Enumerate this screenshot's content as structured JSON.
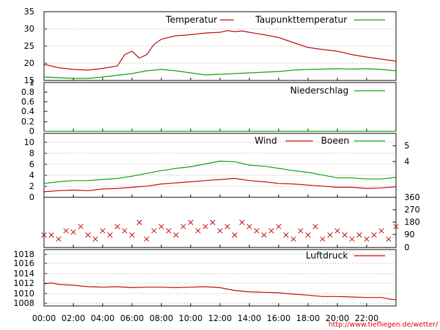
{
  "chart_data": [
    {
      "type": "line",
      "panel": "temperature",
      "ylim": [
        15,
        35
      ],
      "yticks": [
        "35",
        "30",
        "25",
        "20",
        "15"
      ],
      "grid": true,
      "legend_position": "top-right",
      "series": [
        {
          "name": "Temperatur",
          "color": "#c00000",
          "x": [
            0,
            1,
            2,
            3,
            4,
            5,
            5.5,
            6,
            6.5,
            7,
            7.5,
            8,
            8.5,
            9,
            10,
            11,
            12,
            12.5,
            13,
            13.5,
            14,
            15,
            16,
            17,
            18,
            19,
            20,
            21,
            22,
            23,
            24
          ],
          "y": [
            19.7,
            18.7,
            18.2,
            18.0,
            18.5,
            19.2,
            22.5,
            23.5,
            21.5,
            22.5,
            25.5,
            27.0,
            27.5,
            28.0,
            28.3,
            28.8,
            29.0,
            29.5,
            29.2,
            29.4,
            29.0,
            28.3,
            27.5,
            26.0,
            24.6,
            24.0,
            23.5,
            22.5,
            21.8,
            21.2,
            20.6
          ]
        },
        {
          "name": "Taupunkttemperatur",
          "color": "#00a000",
          "x": [
            0,
            1,
            2,
            3,
            4,
            5,
            6,
            7,
            8,
            9,
            10,
            11,
            12,
            13,
            14,
            15,
            16,
            17,
            18,
            19,
            20,
            21,
            22,
            23,
            24
          ],
          "y": [
            16.0,
            15.8,
            15.6,
            15.6,
            16.0,
            16.5,
            17.0,
            17.8,
            18.2,
            17.8,
            17.2,
            16.6,
            16.8,
            17.0,
            17.2,
            17.4,
            17.6,
            18.0,
            18.2,
            18.3,
            18.4,
            18.3,
            18.4,
            18.2,
            17.8
          ]
        }
      ]
    },
    {
      "type": "line",
      "panel": "precipitation",
      "ylim": [
        0,
        1
      ],
      "yticks": [
        "1",
        "0.8",
        "0.6",
        "0.4",
        "0.2",
        "0"
      ],
      "legend_position": "top-right",
      "series": [
        {
          "name": "Niederschlag",
          "color": "#00a000",
          "x": [
            0,
            24
          ],
          "y": [
            0,
            0
          ]
        }
      ]
    },
    {
      "type": "line",
      "panel": "wind",
      "ylim": [
        0,
        11.5
      ],
      "yticks": [
        "10",
        "8",
        "6",
        "4",
        "2",
        "0"
      ],
      "right_ticks": [
        "5",
        "4"
      ],
      "legend_position": "top-right",
      "series": [
        {
          "name": "Wind",
          "color": "#c00000",
          "x": [
            0,
            1,
            2,
            3,
            4,
            5,
            6,
            7,
            8,
            9,
            10,
            11,
            12,
            13,
            14,
            15,
            16,
            17,
            18,
            19,
            20,
            21,
            22,
            23,
            24
          ],
          "y": [
            1.0,
            1.2,
            1.3,
            1.2,
            1.5,
            1.6,
            1.8,
            2.0,
            2.4,
            2.6,
            2.8,
            3.0,
            3.2,
            3.4,
            3.0,
            2.8,
            2.5,
            2.4,
            2.2,
            2.0,
            1.8,
            1.8,
            1.6,
            1.7,
            1.9
          ]
        },
        {
          "name": "Boeen",
          "color": "#00a000",
          "x": [
            0,
            1,
            2,
            3,
            4,
            5,
            6,
            7,
            8,
            9,
            10,
            11,
            12,
            13,
            14,
            15,
            16,
            17,
            18,
            19,
            20,
            21,
            22,
            23,
            24
          ],
          "y": [
            2.5,
            2.8,
            3.0,
            3.0,
            3.2,
            3.4,
            3.8,
            4.3,
            4.8,
            5.2,
            5.5,
            6.0,
            6.5,
            6.4,
            5.8,
            5.6,
            5.2,
            4.8,
            4.5,
            4.0,
            3.5,
            3.5,
            3.3,
            3.3,
            3.6
          ]
        }
      ]
    },
    {
      "type": "scatter",
      "panel": "wind-direction",
      "ylim": [
        0,
        360
      ],
      "right_ticks": [
        "360",
        "270",
        "180",
        "90",
        "0"
      ],
      "marker": "x",
      "series": [
        {
          "name": "",
          "color": "#c00000",
          "x": [
            0,
            0.5,
            1,
            1.5,
            2,
            2.5,
            3,
            3.5,
            4,
            4.5,
            5,
            5.5,
            6,
            6.5,
            7,
            7.5,
            8,
            8.5,
            9,
            9.5,
            10,
            10.5,
            11,
            11.5,
            12,
            12.5,
            13,
            13.5,
            14,
            14.5,
            15,
            15.5,
            16,
            16.5,
            17,
            17.5,
            18,
            18.5,
            19,
            19.5,
            20,
            20.5,
            21,
            21.5,
            22,
            22.5,
            23,
            23.5,
            24
          ],
          "y": [
            90,
            90,
            60,
            120,
            110,
            150,
            90,
            60,
            120,
            90,
            150,
            120,
            90,
            180,
            60,
            120,
            150,
            120,
            90,
            150,
            180,
            120,
            150,
            180,
            120,
            150,
            90,
            180,
            150,
            120,
            90,
            120,
            150,
            90,
            60,
            120,
            90,
            150,
            60,
            90,
            120,
            90,
            60,
            90,
            60,
            90,
            120,
            60,
            150
          ]
        }
      ]
    },
    {
      "type": "line",
      "panel": "pressure",
      "ylim": [
        1007.5,
        1019.5
      ],
      "yticks": [
        "1018",
        "1016",
        "1014",
        "1012",
        "1010",
        "1008"
      ],
      "legend_position": "top-right",
      "series": [
        {
          "name": "Luftdruck",
          "color": "#c00000",
          "x": [
            0,
            0.5,
            1,
            2,
            3,
            4,
            5,
            6,
            7,
            8,
            9,
            10,
            11,
            12,
            13,
            14,
            15,
            16,
            17,
            18,
            19,
            20,
            21,
            22,
            23,
            23.5,
            24
          ],
          "y": [
            1012.2,
            1012.4,
            1012.1,
            1011.9,
            1011.6,
            1011.5,
            1011.6,
            1011.4,
            1011.5,
            1011.5,
            1011.4,
            1011.5,
            1011.6,
            1011.4,
            1010.8,
            1010.5,
            1010.4,
            1010.3,
            1010.0,
            1009.8,
            1009.5,
            1009.5,
            1009.4,
            1009.3,
            1009.3,
            1009.0,
            1008.8
          ]
        }
      ]
    }
  ],
  "x_axis": {
    "range": [
      0,
      24
    ],
    "ticks": [
      "00:00",
      "02:00",
      "04:00",
      "06:00",
      "08:00",
      "10:00",
      "12:00",
      "14:00",
      "16:00",
      "18:00",
      "20:00",
      "22:00"
    ]
  },
  "credit": "http://www.tiefliegen.de/wetter/"
}
